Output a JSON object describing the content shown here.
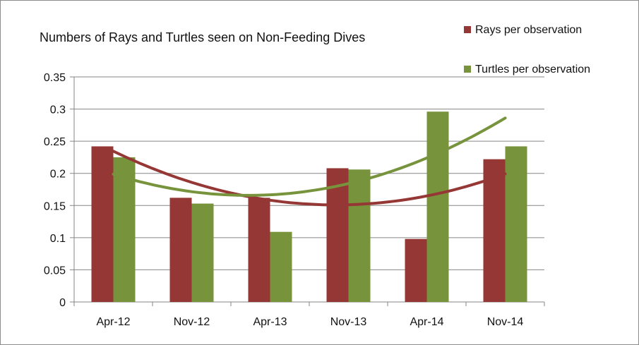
{
  "chart_data": {
    "type": "bar",
    "title": "Numbers of Rays and Turtles seen on Non-Feeding Dives",
    "xlabel": "",
    "ylabel": "",
    "categories": [
      "Apr-12",
      "Nov-12",
      "Apr-13",
      "Nov-13",
      "Apr-14",
      "Nov-14"
    ],
    "ylim": [
      0,
      0.35
    ],
    "yticks": [
      "0",
      "0.05",
      "0.1",
      "0.15",
      "0.2",
      "0.25",
      "0.3",
      "0.35"
    ],
    "grid": true,
    "legend_position": "top-right",
    "series": [
      {
        "name": "Rays per observation",
        "color": "#953735",
        "values": [
          0.242,
          0.162,
          0.162,
          0.208,
          0.098,
          0.222
        ]
      },
      {
        "name": "Turtles per observation",
        "color": "#77933c",
        "values": [
          0.225,
          0.153,
          0.109,
          0.206,
          0.296,
          0.242
        ]
      }
    ],
    "trendlines": [
      {
        "series": "Rays per observation",
        "type": "polynomial",
        "color": "#953735"
      },
      {
        "series": "Turtles per observation",
        "type": "polynomial",
        "color": "#77933c"
      }
    ]
  }
}
